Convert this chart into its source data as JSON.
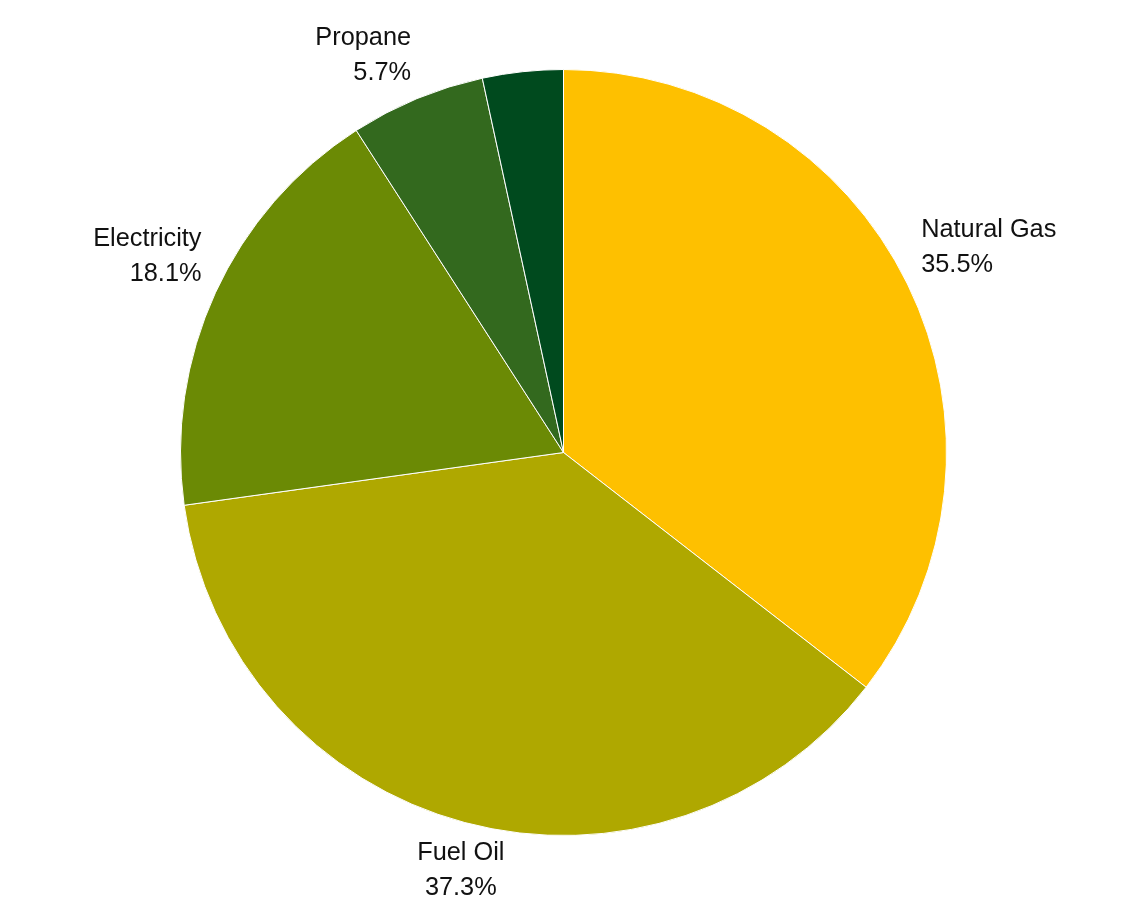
{
  "chart_data": {
    "type": "pie",
    "categories": [
      "Natural Gas",
      "Fuel Oil",
      "Electricity",
      "Propane",
      null
    ],
    "values": [
      35.5,
      37.3,
      18.1,
      5.7,
      3.4
    ],
    "value_labels": [
      "35.5%",
      "37.3%",
      "18.1%",
      "5.7%",
      null
    ],
    "colors": [
      "#fec000",
      "#afa800",
      "#6b8a05",
      "#33691e",
      "#004a1e"
    ]
  }
}
